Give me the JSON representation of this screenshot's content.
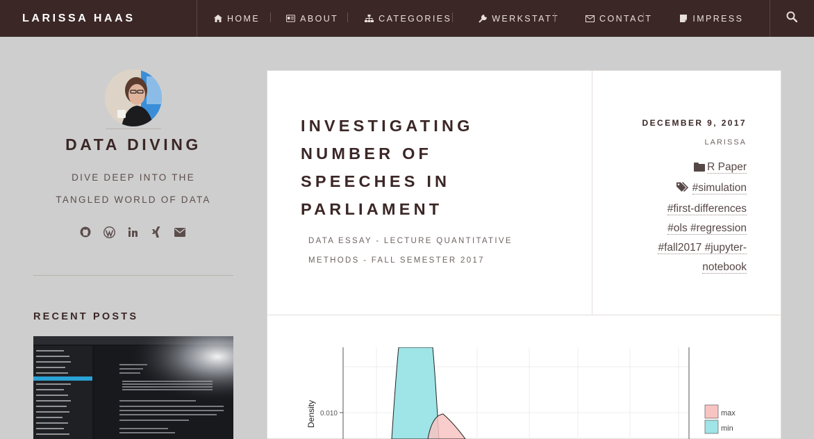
{
  "header": {
    "brand": "LARISSA HAAS",
    "nav": [
      {
        "label": "HOME",
        "icon": "home-icon"
      },
      {
        "label": "ABOUT",
        "icon": "id-card-icon"
      },
      {
        "label": "CATEGORIES",
        "icon": "sitemap-icon"
      },
      {
        "label": "WERKSTATT",
        "icon": "wrench-icon"
      },
      {
        "label": "CONTACT",
        "icon": "envelope-icon"
      },
      {
        "label": "IMPRESS",
        "icon": "note-icon"
      }
    ],
    "search_icon": "search-icon"
  },
  "sidebar": {
    "title": "DATA DIVING",
    "tagline_line1": "DIVE DEEP INTO THE",
    "tagline_line2": "TANGLED WORLD OF DATA",
    "socials": [
      "github-icon",
      "wordpress-icon",
      "linkedin-icon",
      "xing-icon",
      "envelope-icon"
    ],
    "recent_posts_title": "RECENT POSTS"
  },
  "post": {
    "title_lines": [
      "INVESTIGATING",
      "NUMBER OF",
      "SPEECHES IN",
      "PARLIAMENT"
    ],
    "subtitle_line1": "DATA ESSAY - LECTURE QUANTITATIVE",
    "subtitle_line2": "METHODS - FALL SEMESTER 2017",
    "date": "DECEMBER 9, 2017",
    "author": "LARISSA",
    "category": "R Paper",
    "tags_line1": "#simulation",
    "tags_line2": "#first-differences",
    "tags_line3": "#ols #regression",
    "tags_line4": "#fall2017 #jupyter-",
    "tags_line5": "notebook"
  },
  "chart_data": {
    "type": "area",
    "ylabel": "Density",
    "y_tick_labels": [
      "0.010"
    ],
    "series": [
      {
        "name": "max",
        "color": "#f8c4c2"
      },
      {
        "name": "min",
        "color": "#9fe4e6"
      }
    ],
    "grid": true,
    "legend_placement": "right"
  },
  "colors": {
    "nav_bg": "#3b2726",
    "page_bg": "#cecece",
    "accent_text": "#3b2726"
  }
}
